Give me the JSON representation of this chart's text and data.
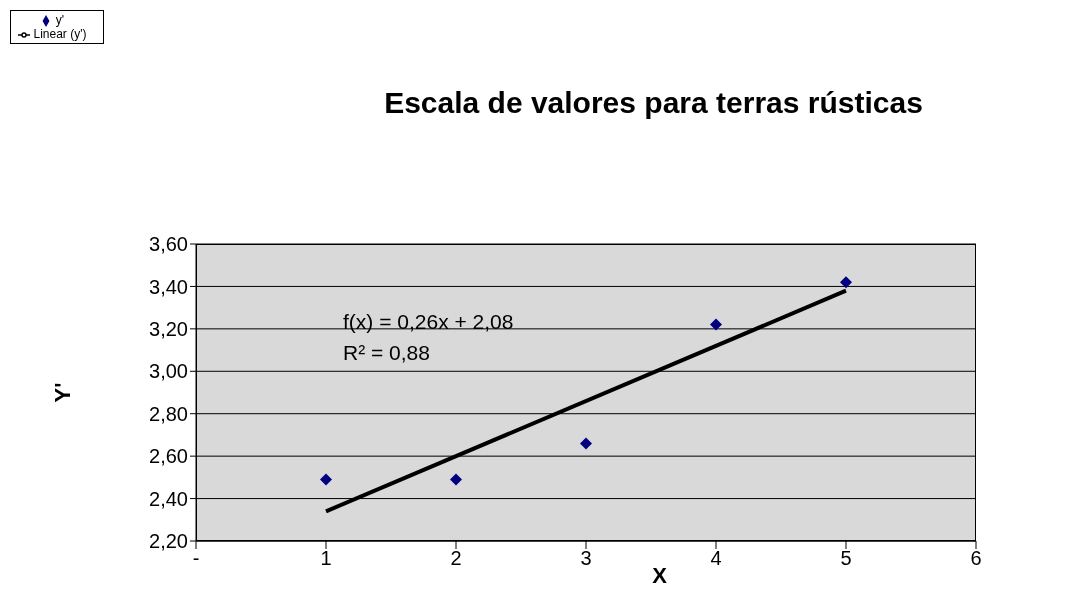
{
  "chart_data": {
    "type": "scatter",
    "title": "Escala de valores para terras rústicas",
    "xlabel": "X",
    "ylabel": "Y'",
    "annotations": [
      "f(x) = 0,26x + 2,08",
      "R² = 0,88"
    ],
    "xlim": [
      0,
      6
    ],
    "xticks": [
      {
        "value": 0,
        "label": "-"
      },
      1,
      2,
      3,
      4,
      5,
      6
    ],
    "ylim": [
      2.2,
      3.6
    ],
    "yticks": [
      {
        "value": 2.2,
        "label": "2,20"
      },
      {
        "value": 2.4,
        "label": "2,40"
      },
      {
        "value": 2.6,
        "label": "2,60"
      },
      {
        "value": 2.8,
        "label": "2,80"
      },
      {
        "value": 3.0,
        "label": "3,00"
      },
      {
        "value": 3.2,
        "label": "3,20"
      },
      {
        "value": 3.4,
        "label": "3,40"
      },
      {
        "value": 3.6,
        "label": "3,60"
      }
    ],
    "grid": "y",
    "legend": "top left",
    "series": [
      {
        "name": "y'",
        "color": "#000080",
        "marker": "diamond",
        "x": [
          1,
          2,
          3,
          4,
          5
        ],
        "values": [
          2.49,
          2.49,
          2.66,
          3.22,
          3.42
        ]
      },
      {
        "name": "Linear (y')",
        "type": "line",
        "color": "#000000",
        "marker": "none",
        "line_style": "solid",
        "x": [
          1,
          5
        ],
        "values": [
          2.34,
          3.38
        ]
      }
    ]
  }
}
